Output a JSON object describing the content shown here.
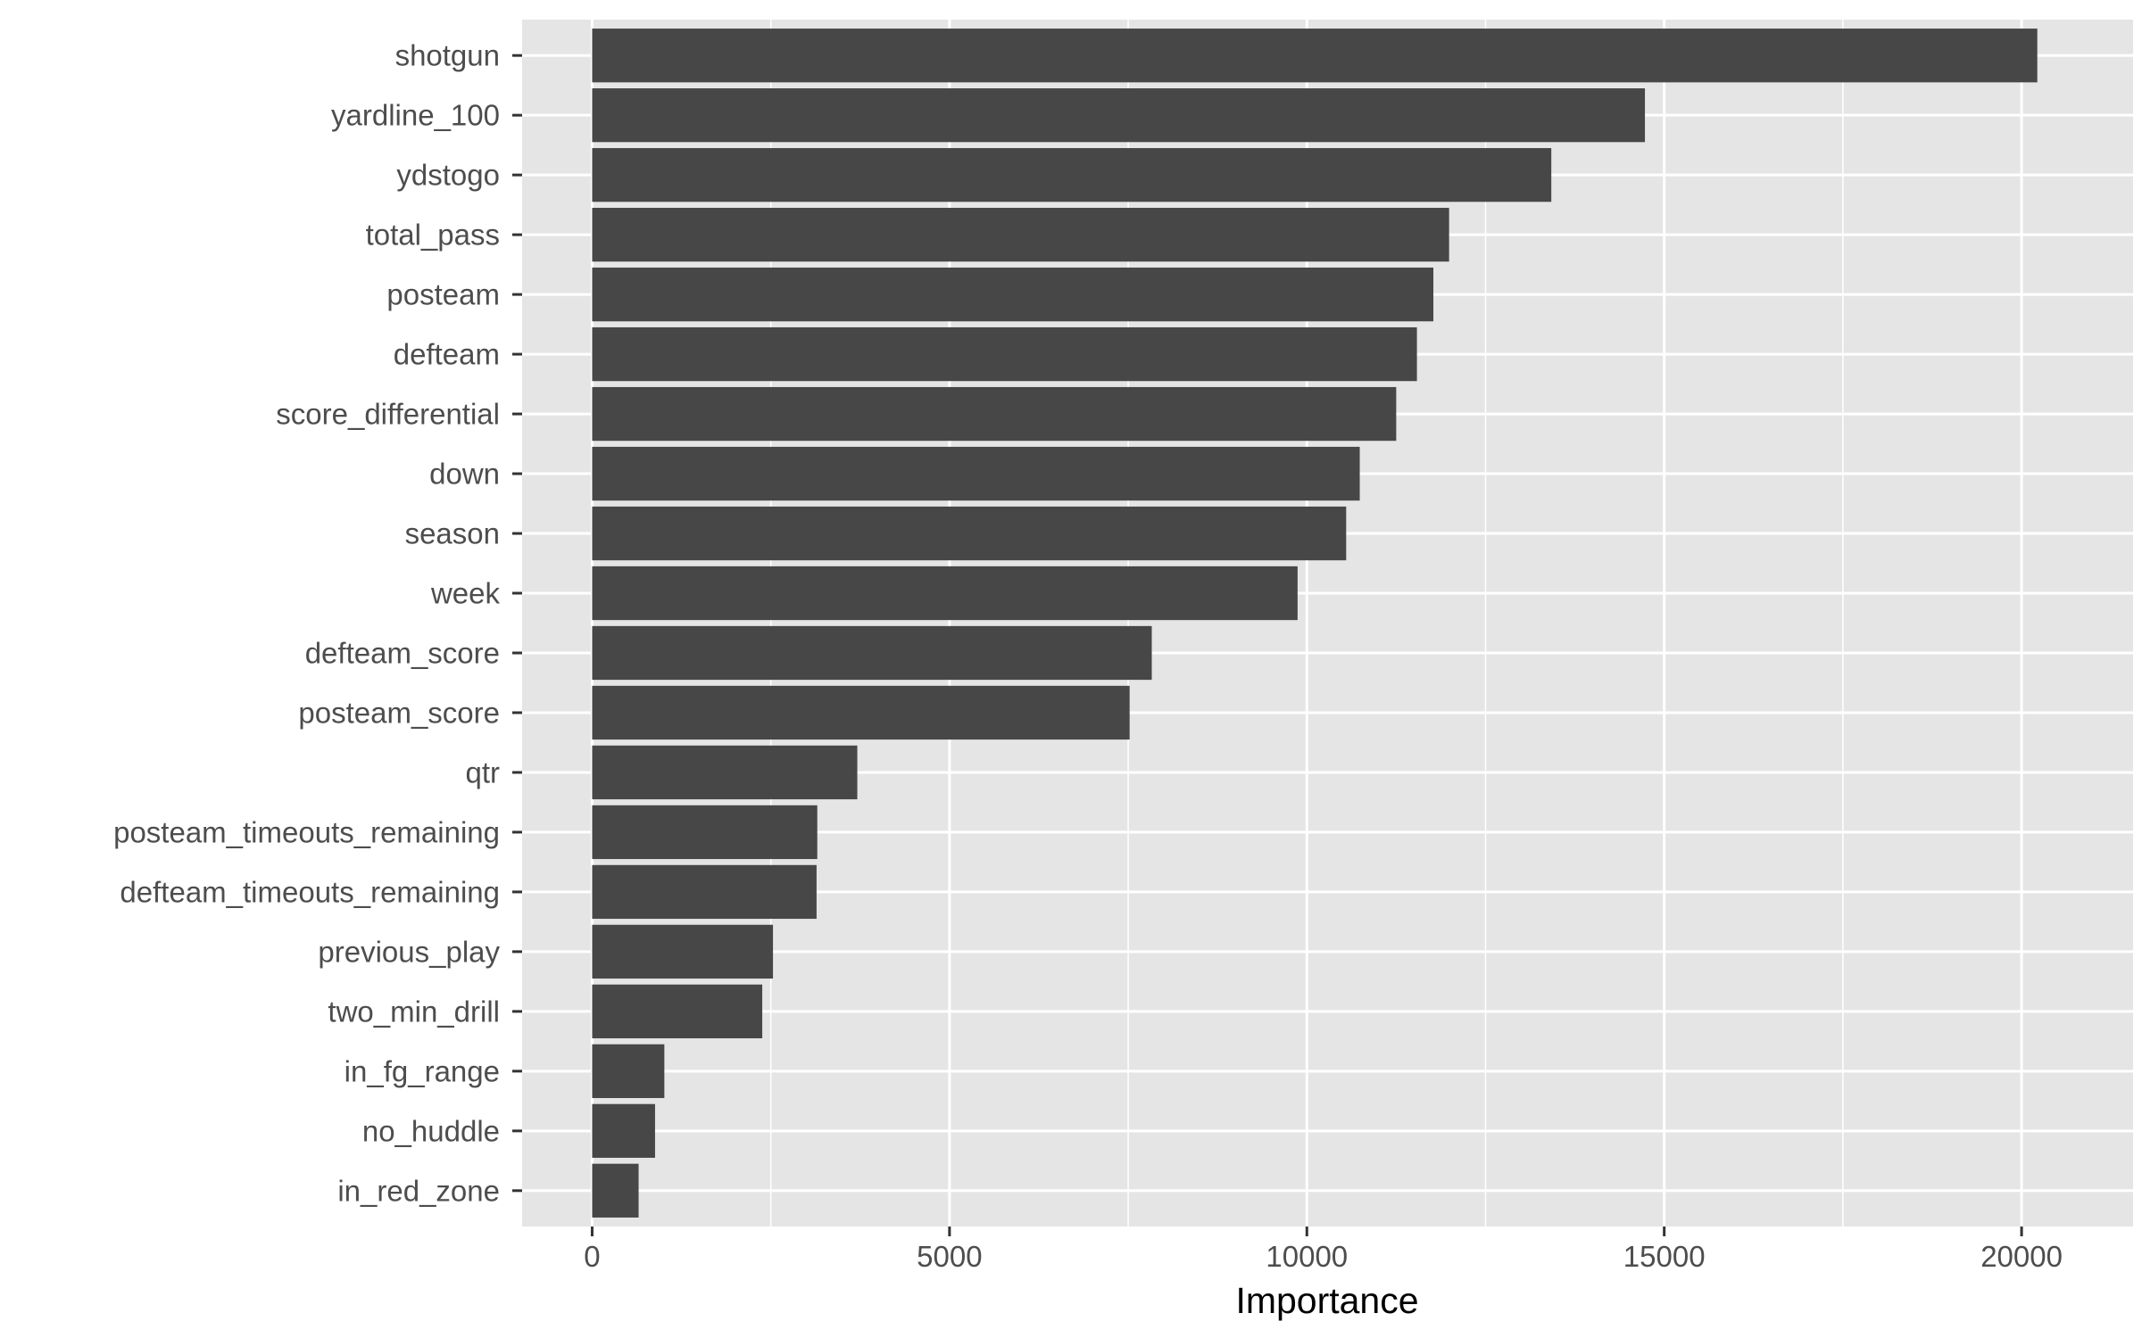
{
  "chart_data": {
    "type": "bar",
    "orientation": "horizontal",
    "title": "",
    "xlabel": "Importance",
    "ylabel": "",
    "categories": [
      "shotgun",
      "yardline_100",
      "ydstogo",
      "total_pass",
      "posteam",
      "defteam",
      "score_differential",
      "down",
      "season",
      "week",
      "defteam_score",
      "posteam_score",
      "qtr",
      "posteam_timeouts_remaining",
      "defteam_timeouts_remaining",
      "previous_play",
      "two_min_drill",
      "in_fg_range",
      "no_huddle",
      "in_red_zone"
    ],
    "values": [
      20220,
      14730,
      13420,
      11990,
      11770,
      11540,
      11250,
      10740,
      10550,
      9870,
      7830,
      7520,
      3710,
      3150,
      3140,
      2530,
      2380,
      1010,
      880,
      650
    ],
    "xlim": [
      -980,
      21560
    ],
    "xticks": [
      0,
      5000,
      10000,
      15000,
      20000
    ],
    "xtick_labels": [
      "0",
      "5000",
      "10000",
      "15000",
      "20000"
    ],
    "grid": true,
    "colors": {
      "bar": "#474747",
      "panel": "#e5e5e5",
      "grid": "#ffffff",
      "tick_text": "#4d4d4d",
      "axis_title": "#000000"
    }
  }
}
